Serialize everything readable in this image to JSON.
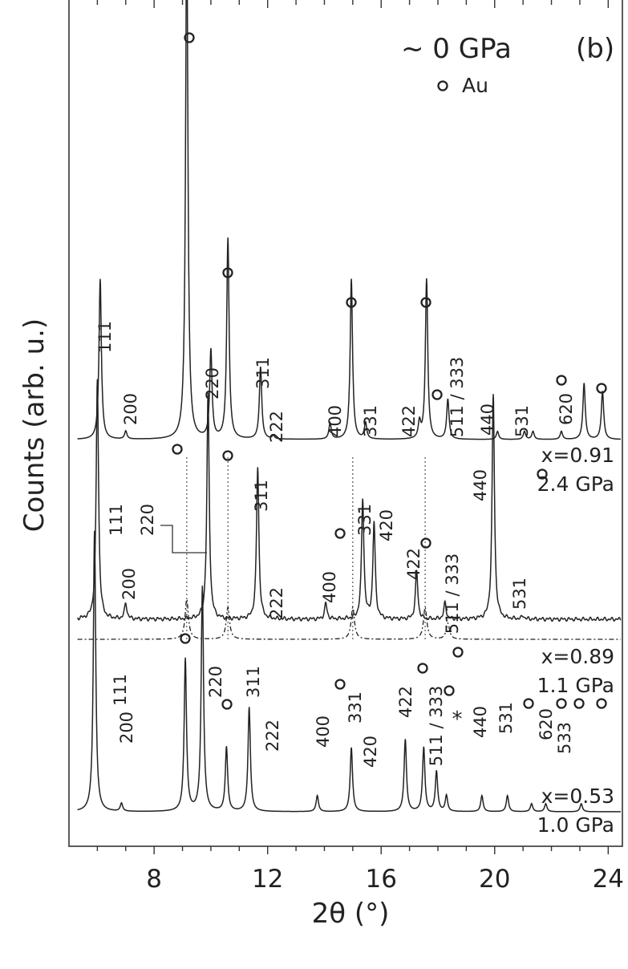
{
  "chart_data": {
    "type": "line",
    "panel_label": "(b)",
    "xlabel": "2θ (°)",
    "ylabel": "Counts (arb. u.)",
    "xlim": [
      5,
      24.5
    ],
    "x_ticks": [
      8,
      12,
      16,
      20,
      24
    ],
    "x_tick_labels": [
      "8",
      "12",
      "16",
      "20",
      "24"
    ],
    "legend": {
      "title": "~ 0 GPa",
      "marker_label": "Au",
      "placement": "top-right"
    },
    "series": [
      {
        "name": "x=0.91",
        "pressure": "2.4 GPa",
        "peaks": [
          {
            "x": 6.1,
            "h": 0.2
          },
          {
            "x": 7.0,
            "h": 0.01
          },
          {
            "x": 9.15,
            "h": 0.64
          },
          {
            "x": 10.0,
            "h": 0.11
          },
          {
            "x": 10.6,
            "h": 0.25
          },
          {
            "x": 11.75,
            "h": 0.09
          },
          {
            "x": 12.2,
            "h": 0.004
          },
          {
            "x": 14.2,
            "h": 0.02
          },
          {
            "x": 14.95,
            "h": 0.2
          },
          {
            "x": 15.45,
            "h": 0.02
          },
          {
            "x": 17.35,
            "h": 0.02
          },
          {
            "x": 17.6,
            "h": 0.2
          },
          {
            "x": 18.35,
            "h": 0.05
          },
          {
            "x": 20.1,
            "h": 0.01
          },
          {
            "x": 21.05,
            "h": 0.01
          },
          {
            "x": 21.35,
            "h": 0.01
          },
          {
            "x": 22.35,
            "h": 0.01
          },
          {
            "x": 23.15,
            "h": 0.07
          },
          {
            "x": 23.8,
            "h": 0.06
          }
        ],
        "hkl_labels": [
          "111",
          "200",
          "220",
          "311",
          "222",
          "400",
          "331",
          "422",
          "511 / 333",
          "440",
          "531",
          "620"
        ],
        "au_markers": 9
      },
      {
        "name": "x=0.89",
        "pressure": "1.1 GPa",
        "peaks": [
          {
            "x": 6.0,
            "h": 0.3
          },
          {
            "x": 7.0,
            "h": 0.02
          },
          {
            "x": 9.9,
            "h": 0.28
          },
          {
            "x": 11.65,
            "h": 0.19
          },
          {
            "x": 14.05,
            "h": 0.02
          },
          {
            "x": 15.35,
            "h": 0.15
          },
          {
            "x": 15.75,
            "h": 0.12
          },
          {
            "x": 17.25,
            "h": 0.06
          },
          {
            "x": 18.25,
            "h": 0.02
          },
          {
            "x": 19.95,
            "h": 0.28
          },
          {
            "x": 21.0,
            "h": 0.004
          }
        ],
        "hkl_labels": [
          "111",
          "200",
          "220",
          "311",
          "222",
          "400",
          "331",
          "420",
          "422",
          "511 / 333",
          "440",
          "531"
        ],
        "au_markers": 4
      },
      {
        "name": "Au (dash-dot reference)",
        "peaks": [
          {
            "x": 9.15,
            "h": 0.05
          },
          {
            "x": 10.6,
            "h": 0.04
          },
          {
            "x": 15.0,
            "h": 0.04
          },
          {
            "x": 17.55,
            "h": 0.04
          },
          {
            "x": 18.35,
            "h": 0.02
          }
        ],
        "au_markers": 1
      },
      {
        "name": "x=0.53",
        "pressure": "1.0 GPa",
        "peaks": [
          {
            "x": 5.9,
            "h": 0.35
          },
          {
            "x": 6.85,
            "h": 0.01
          },
          {
            "x": 9.1,
            "h": 0.19
          },
          {
            "x": 9.7,
            "h": 0.28
          },
          {
            "x": 10.55,
            "h": 0.08
          },
          {
            "x": 11.35,
            "h": 0.13
          },
          {
            "x": 13.75,
            "h": 0.02
          },
          {
            "x": 14.95,
            "h": 0.08
          },
          {
            "x": 16.85,
            "h": 0.09
          },
          {
            "x": 17.5,
            "h": 0.08
          },
          {
            "x": 17.95,
            "h": 0.05
          },
          {
            "x": 18.3,
            "h": 0.02
          },
          {
            "x": 19.55,
            "h": 0.02
          },
          {
            "x": 20.45,
            "h": 0.02
          },
          {
            "x": 21.3,
            "h": 0.01
          },
          {
            "x": 21.8,
            "h": 0.01
          },
          {
            "x": 23.05,
            "h": 0.01
          }
        ],
        "hkl_labels": [
          "111",
          "200",
          "220",
          "311",
          "222",
          "400",
          "331",
          "420",
          "422",
          "511 / 333",
          "440",
          "531",
          "620",
          "533"
        ],
        "au_markers": 8,
        "impurity_marker": "*"
      }
    ]
  }
}
